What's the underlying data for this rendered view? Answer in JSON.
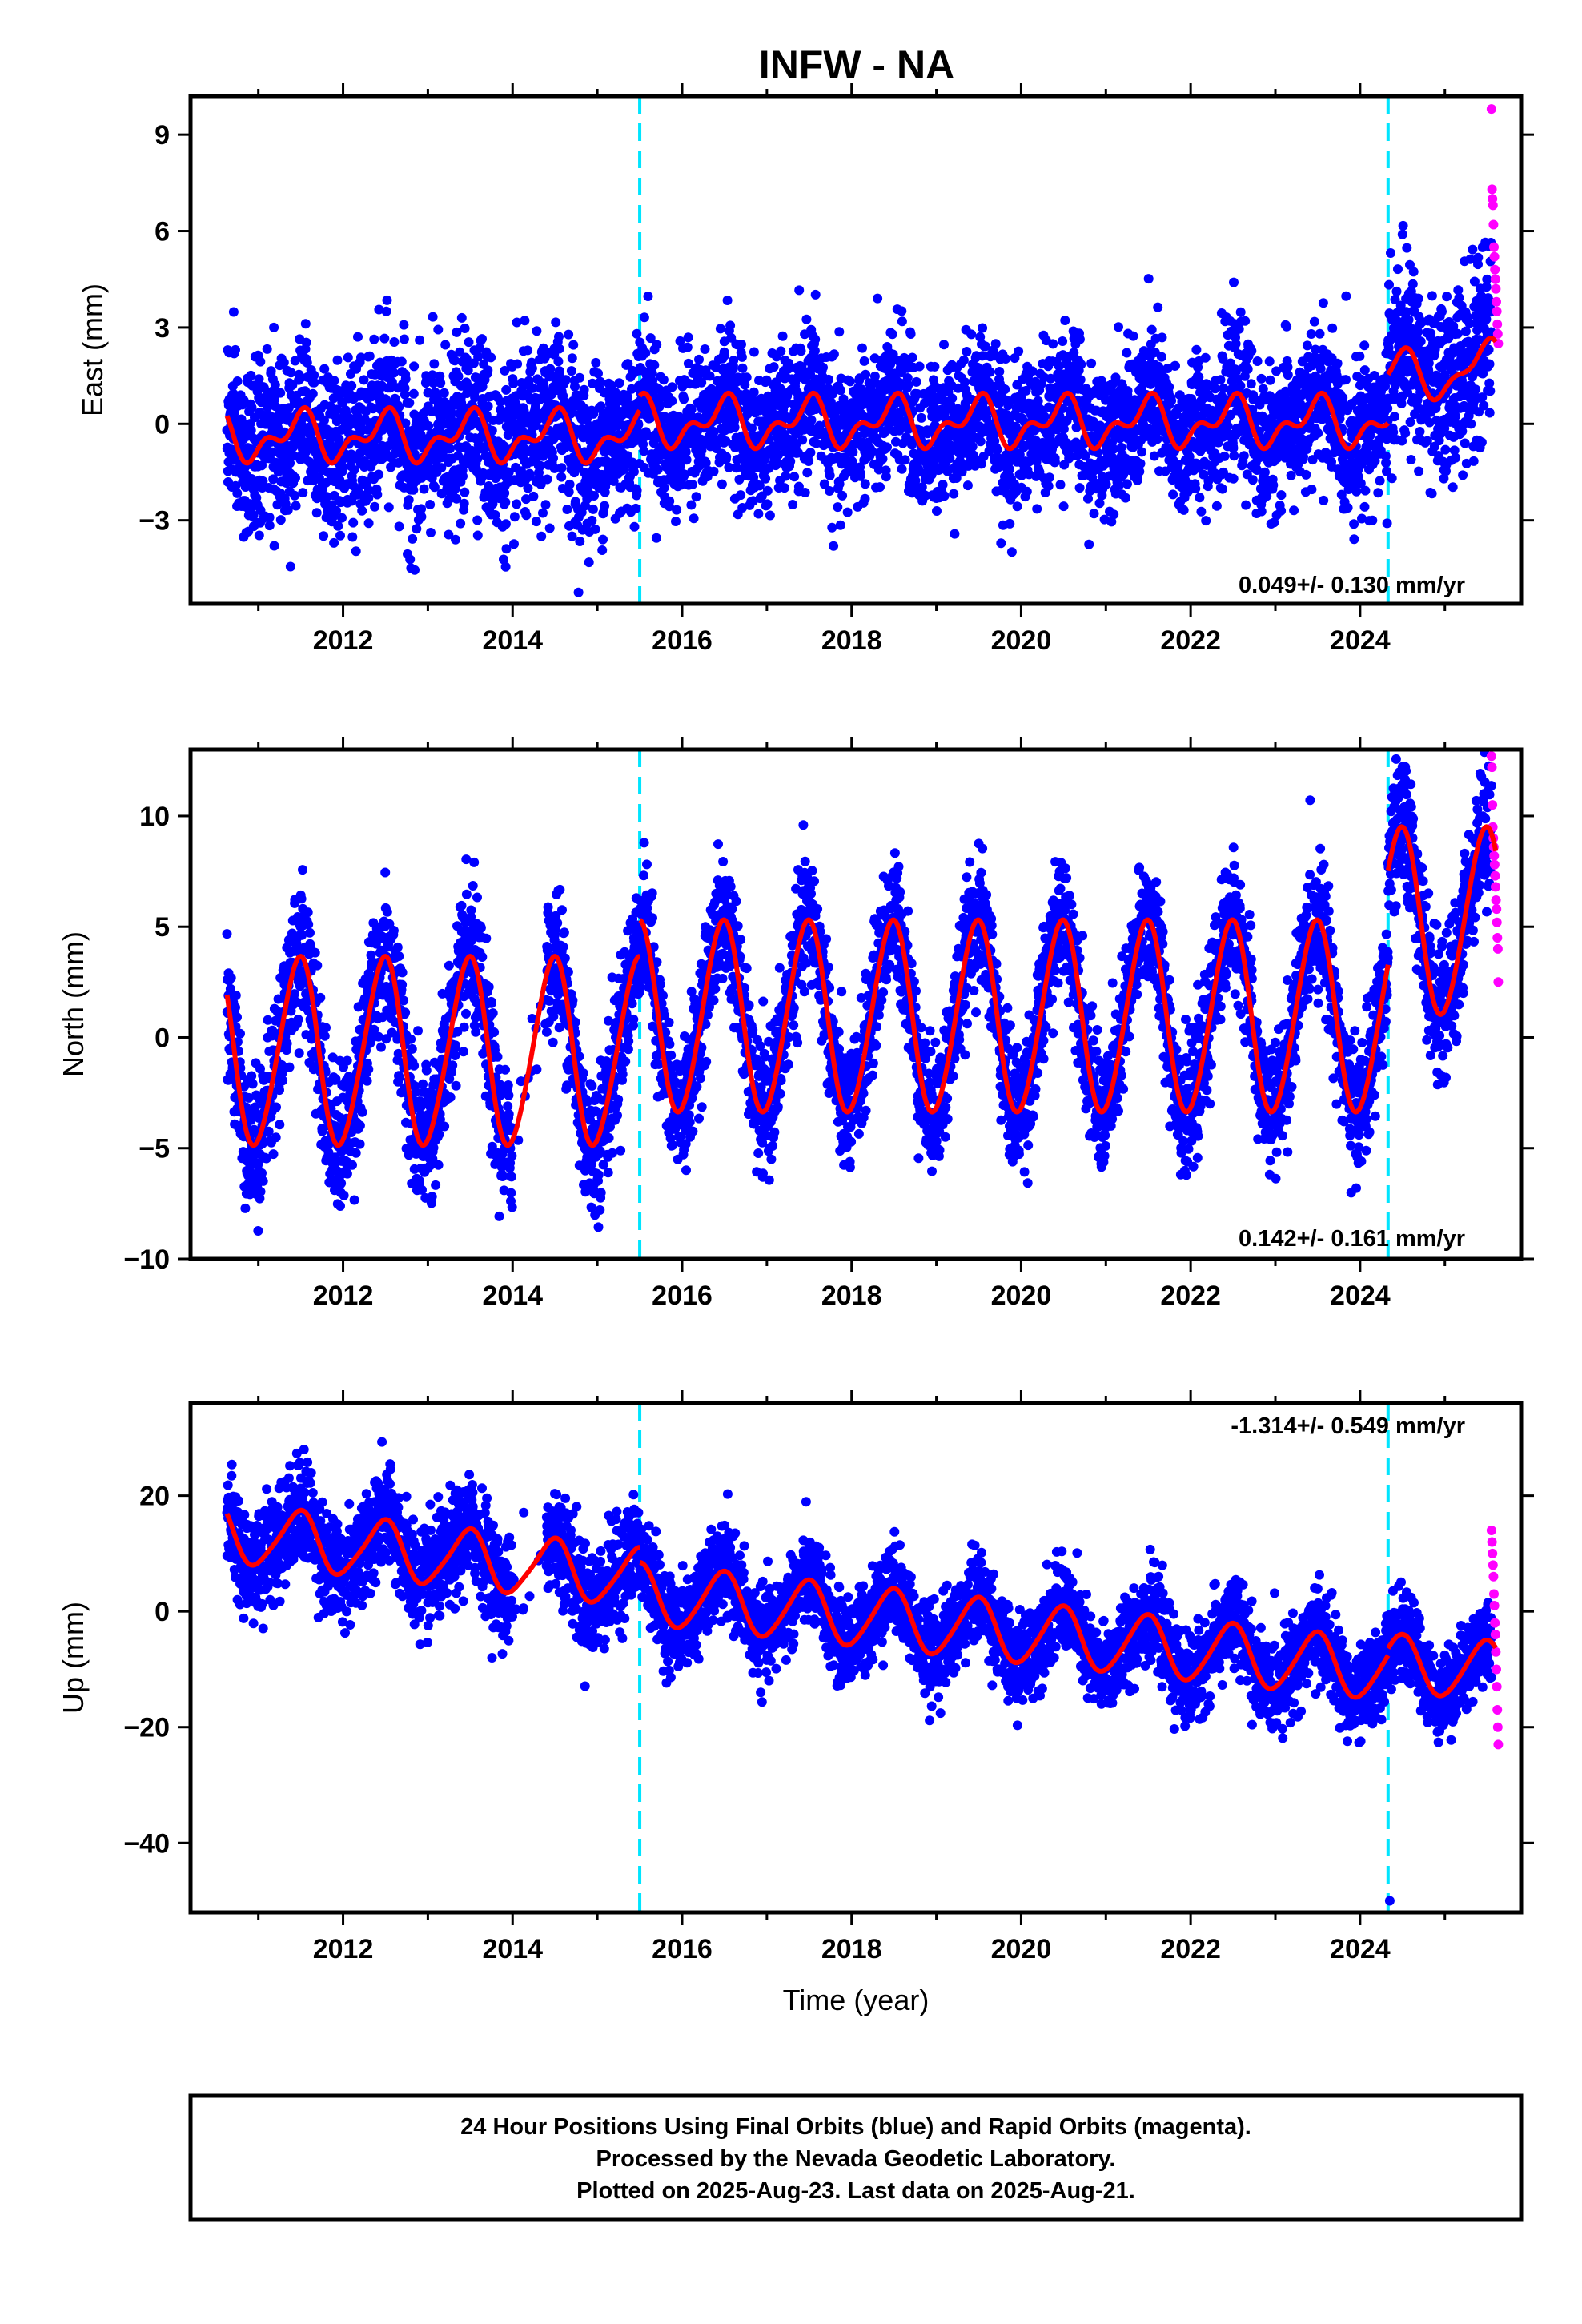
{
  "title": "INFW - NA",
  "colors": {
    "final": "#0000ff",
    "rapid": "#ff00ff",
    "model": "#ff0000",
    "steps": "#00e5ff"
  },
  "xlabel": "Time (year)",
  "x_ticks": [
    2012,
    2014,
    2016,
    2018,
    2020,
    2022,
    2024
  ],
  "x_tick_labels": [
    "2012",
    "2014",
    "2016",
    "2018",
    "2020",
    "2022",
    "2024"
  ],
  "footer": {
    "line1": "24 Hour Positions Using Final Orbits (blue) and Rapid Orbits (magenta).",
    "line2": "Processed by the Nevada Geodetic Laboratory.",
    "line3": "Plotted on 2025-Aug-23. Last data on 2025-Aug-21."
  },
  "chart_data": [
    {
      "type": "scatter",
      "component": "east",
      "ylabel": "East (mm)",
      "rate_label": "0.049+/- 0.130 mm/yr",
      "xlim": [
        2010.2,
        2025.9
      ],
      "ylim": [
        -5.6,
        10.2
      ],
      "y_ticks": [
        -3,
        0,
        3,
        6,
        9
      ],
      "y_tick_labels": [
        "−3",
        "0",
        "3",
        "6",
        "9"
      ],
      "step_epochs": [
        2015.5,
        2024.33
      ],
      "model_segments": [
        {
          "from": 2010.63,
          "to": 2015.5,
          "base": -0.4,
          "slope": 0.0,
          "amp_annual": 0.6,
          "amp_semi": 0.4
        },
        {
          "from": 2015.5,
          "to": 2024.33,
          "base": 0.05,
          "slope": 0.0,
          "amp_annual": 0.6,
          "amp_semi": 0.4
        },
        {
          "from": 2024.33,
          "to": 2025.6,
          "base": 1.4,
          "slope": 0.3,
          "amp_annual": 0.7,
          "amp_semi": 0.3
        }
      ],
      "final_points": [
        {
          "from": 2010.63,
          "to": 2015.5,
          "base": -0.4,
          "spread": 1.3
        },
        {
          "from": 2015.5,
          "to": 2024.33,
          "base": 0.05,
          "spread": 1.1
        },
        {
          "from": 2024.33,
          "to": 2025.55,
          "base": 1.5,
          "spread": 1.4
        }
      ],
      "rapid_points": {
        "from": 2025.55,
        "to": 2025.63,
        "values": [
          9.8,
          7.3,
          7.0,
          6.8,
          6.2,
          5.5,
          5.2,
          4.8,
          4.5,
          4.2,
          3.8,
          3.5,
          3.1,
          2.8,
          2.5
        ]
      }
    },
    {
      "type": "scatter",
      "component": "north",
      "ylabel": "North (mm)",
      "rate_label": "0.142+/- 0.161 mm/yr",
      "xlim": [
        2010.2,
        2025.9
      ],
      "ylim": [
        -10,
        13
      ],
      "y_ticks": [
        -10,
        -5,
        0,
        5,
        10
      ],
      "y_tick_labels": [
        "−10",
        "−5",
        "0",
        "5",
        "10"
      ],
      "step_epochs": [
        2015.5,
        2024.33
      ],
      "model_segments": [
        {
          "from": 2010.63,
          "to": 2015.5,
          "base": -0.7,
          "slope": 0.0,
          "amp_annual": 4.2,
          "amp_semi": 0.4
        },
        {
          "from": 2015.5,
          "to": 2024.33,
          "base": 0.9,
          "slope": 0.0,
          "amp_annual": 4.3,
          "amp_semi": 0.3
        },
        {
          "from": 2024.33,
          "to": 2025.6,
          "base": 5.2,
          "slope": 0.0,
          "amp_annual": 4.2,
          "amp_semi": 0.3
        }
      ],
      "final_points": [
        {
          "from": 2010.63,
          "to": 2015.5,
          "base": -0.7,
          "spread": 1.6
        },
        {
          "from": 2015.5,
          "to": 2024.33,
          "base": 0.9,
          "spread": 1.4
        },
        {
          "from": 2024.33,
          "to": 2025.55,
          "base": 5.2,
          "spread": 1.5
        }
      ],
      "rapid_points": {
        "from": 2025.55,
        "to": 2025.63,
        "values": [
          12.7,
          12.2,
          10.5,
          9.5,
          9.0,
          8.6,
          8.2,
          7.8,
          7.3,
          6.8,
          6.2,
          5.8,
          5.2,
          4.5,
          4.0,
          2.5
        ]
      }
    },
    {
      "type": "scatter",
      "component": "up",
      "ylabel": "Up (mm)",
      "rate_label": "-1.314+/- 0.549 mm/yr",
      "xlim": [
        2010.2,
        2025.9
      ],
      "ylim": [
        -52,
        36
      ],
      "y_ticks": [
        -40,
        -20,
        0,
        20
      ],
      "y_tick_labels": [
        "−40",
        "−20",
        "0",
        "20"
      ],
      "step_epochs": [
        2015.5,
        2024.33
      ],
      "model_segments": [
        {
          "from": 2010.63,
          "to": 2015.5,
          "base": 13.5,
          "slope": -1.6,
          "amp_annual": 5.0,
          "amp_semi": 0.8
        },
        {
          "from": 2015.5,
          "to": 2024.33,
          "base": 3.0,
          "slope": -1.5,
          "amp_annual": 5.2,
          "amp_semi": 0.6
        },
        {
          "from": 2024.33,
          "to": 2025.6,
          "base": -9.0,
          "slope": -1.0,
          "amp_annual": 5.0,
          "amp_semi": 0.5
        }
      ],
      "final_points": [
        {
          "from": 2010.63,
          "to": 2015.5,
          "base": 13.5,
          "spread": 4.5
        },
        {
          "from": 2015.5,
          "to": 2024.33,
          "base": 3.0,
          "spread": 3.8
        },
        {
          "from": 2024.33,
          "to": 2025.55,
          "base": -9.0,
          "spread": 3.5
        }
      ],
      "outliers": [
        {
          "x": 2024.35,
          "y": -50
        }
      ],
      "rapid_points": {
        "from": 2025.55,
        "to": 2025.63,
        "values": [
          14,
          12,
          10,
          8,
          6,
          3,
          1,
          -2,
          -4,
          -7,
          -10,
          -13,
          -17,
          -20,
          -23
        ]
      }
    }
  ]
}
